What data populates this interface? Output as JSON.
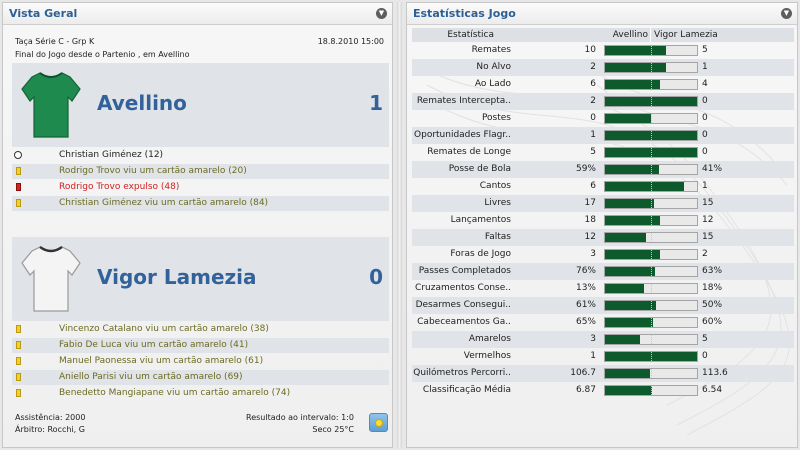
{
  "left_panel": {
    "title": "Vista Geral",
    "competition": "Taça Série C - Grp K",
    "date": "18.8.2010 15:00",
    "subtitle": "Final do Jogo desde o Partenio , em Avellino",
    "home": {
      "name": "Avellino",
      "score": "1",
      "shirt_color": "#1e8a4e",
      "events": [
        {
          "type": "goal",
          "text": "Christian Giménez (12)",
          "color": "#222222"
        },
        {
          "type": "yellow",
          "text": "Rodrigo Trovo viu um cartão amarelo (20)",
          "color": "#6b6b22"
        },
        {
          "type": "red",
          "text": "Rodrigo Trovo expulso (48)",
          "color": "#d01f1f"
        },
        {
          "type": "yellow",
          "text": "Christian Giménez viu um cartão amarelo (84)",
          "color": "#6b6b22"
        }
      ]
    },
    "away": {
      "name": "Vigor Lamezia",
      "score": "0",
      "shirt_color": "#f4f4f4",
      "events": [
        {
          "type": "yellow",
          "text": "Vincenzo Catalano viu um cartão amarelo (38)",
          "color": "#6b6b22"
        },
        {
          "type": "yellow",
          "text": "Fabio De Luca viu um cartão amarelo (41)",
          "color": "#6b6b22"
        },
        {
          "type": "yellow",
          "text": "Manuel Paonessa viu um cartão amarelo (61)",
          "color": "#6b6b22"
        },
        {
          "type": "yellow",
          "text": "Aniello Parisi viu um cartão amarelo (69)",
          "color": "#6b6b22"
        },
        {
          "type": "yellow",
          "text": "Benedetto Mangiapane viu um cartão amarelo (74)",
          "color": "#6b6b22"
        }
      ]
    },
    "footer": {
      "attendance": "Assistência: 2000",
      "referee": "Árbitro: Rocchi, G",
      "halftime": "Resultado ao intervalo: 1:0",
      "weather": "Seco 25°C"
    }
  },
  "right_panel": {
    "title": "Estatísticas Jogo",
    "header": {
      "stat": "Estatística",
      "home": "Avellino",
      "away": "Vigor Lamezia"
    },
    "rows": [
      {
        "label": "Remates",
        "home": "10",
        "away": "5",
        "home_share": 0.667
      },
      {
        "label": "No Alvo",
        "home": "2",
        "away": "1",
        "home_share": 0.667
      },
      {
        "label": "Ao Lado",
        "home": "6",
        "away": "4",
        "home_share": 0.6
      },
      {
        "label": "Remates Intercepta..",
        "home": "2",
        "away": "0",
        "home_share": 1.0
      },
      {
        "label": "Postes",
        "home": "0",
        "away": "0",
        "home_share": 0.5
      },
      {
        "label": "Oportunidades Flagr..",
        "home": "1",
        "away": "0",
        "home_share": 1.0
      },
      {
        "label": "Remates de Longe",
        "home": "5",
        "away": "0",
        "home_share": 1.0
      },
      {
        "label": "Posse de Bola",
        "home": "59%",
        "away": "41%",
        "home_share": 0.59
      },
      {
        "label": "Cantos",
        "home": "6",
        "away": "1",
        "home_share": 0.857
      },
      {
        "label": "Livres",
        "home": "17",
        "away": "15",
        "home_share": 0.531
      },
      {
        "label": "Lançamentos",
        "home": "18",
        "away": "12",
        "home_share": 0.6
      },
      {
        "label": "Faltas",
        "home": "12",
        "away": "15",
        "home_share": 0.444
      },
      {
        "label": "Foras de Jogo",
        "home": "3",
        "away": "2",
        "home_share": 0.6
      },
      {
        "label": "Passes Completados",
        "home": "76%",
        "away": "63%",
        "home_share": 0.547
      },
      {
        "label": "Cruzamentos Conse..",
        "home": "13%",
        "away": "18%",
        "home_share": 0.419
      },
      {
        "label": "Desarmes Consegui..",
        "home": "61%",
        "away": "50%",
        "home_share": 0.55
      },
      {
        "label": "Cabeceamentos Ga..",
        "home": "65%",
        "away": "60%",
        "home_share": 0.52
      },
      {
        "label": "Amarelos",
        "home": "3",
        "away": "5",
        "home_share": 0.375
      },
      {
        "label": "Vermelhos",
        "home": "1",
        "away": "0",
        "home_share": 1.0
      },
      {
        "label": "Quilómetros Percorri..",
        "home": "106.7",
        "away": "113.6",
        "home_share": 0.484
      },
      {
        "label": "Classificação Média",
        "home": "6.87",
        "away": "6.54",
        "home_share": 0.512
      }
    ]
  },
  "colors": {
    "title_blue": "#2d5f96",
    "team_blue": "#33629a",
    "bar_green": "#0d5a2c",
    "event_olive": "#6b6b22",
    "event_red": "#d01f1f"
  }
}
